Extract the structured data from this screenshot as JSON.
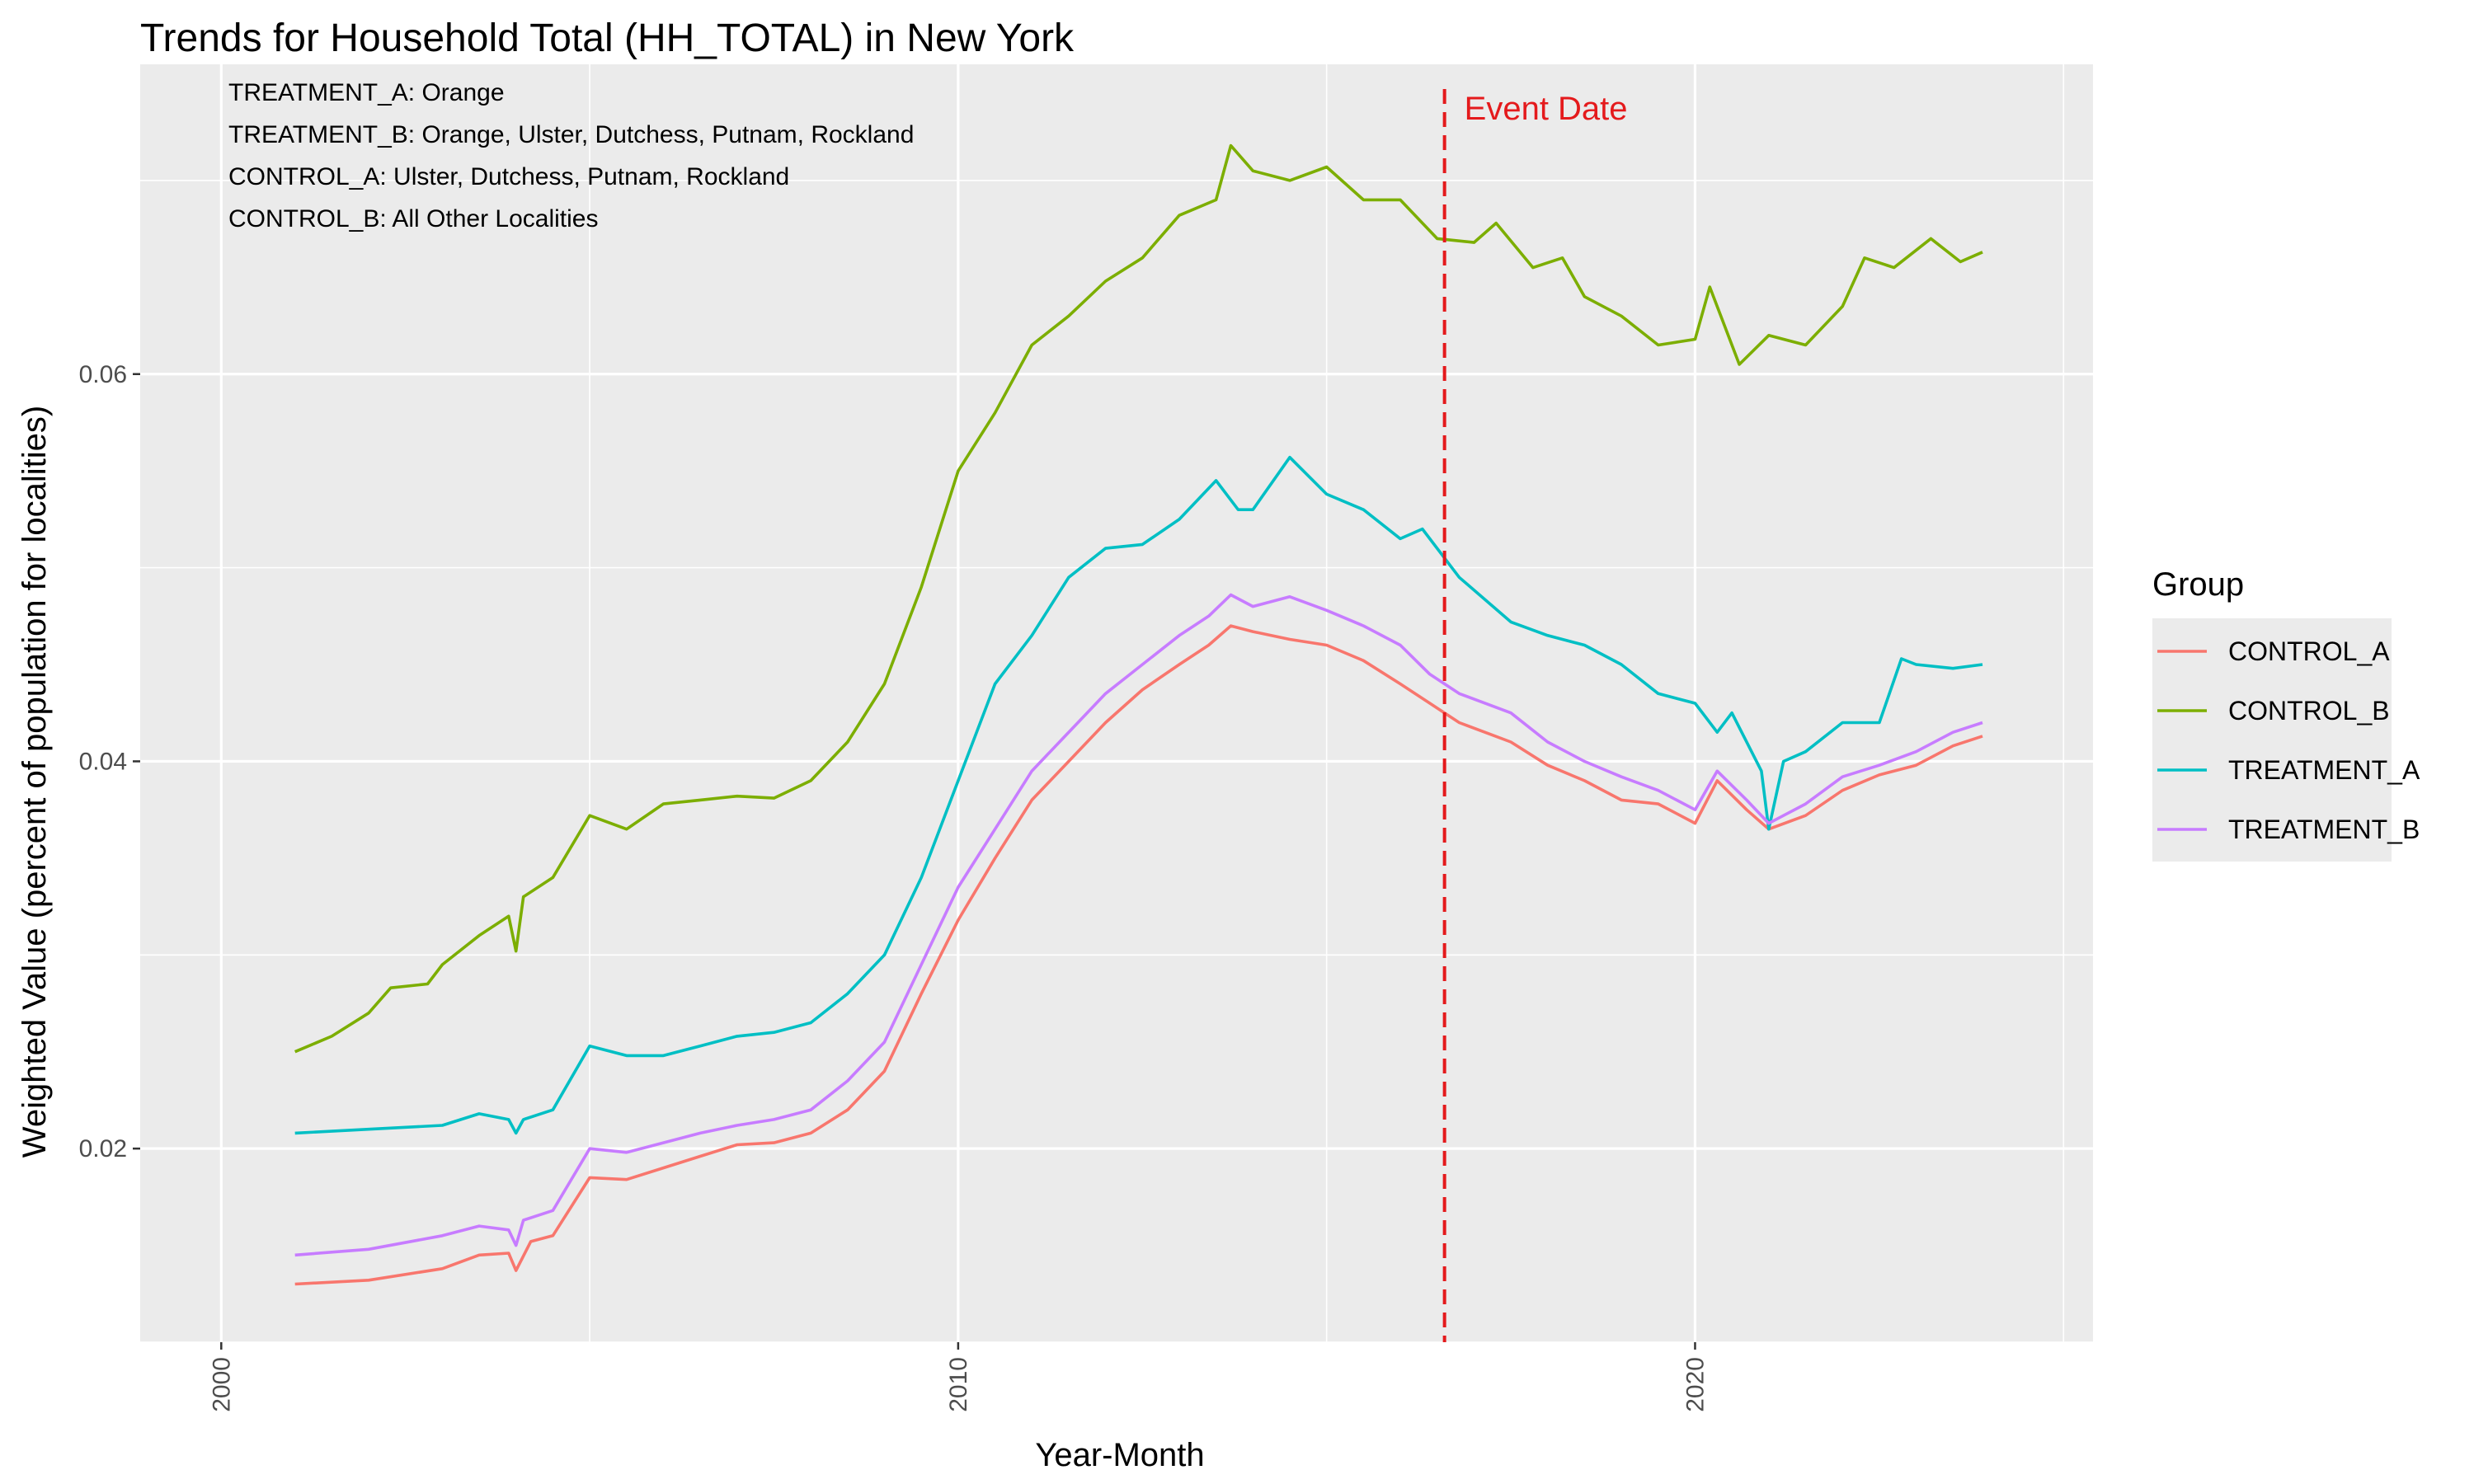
{
  "chart_data": {
    "type": "line",
    "title": "Trends for Household Total (HH_TOTAL) in New York",
    "xlabel": "Year-Month",
    "ylabel": "Weighted Value (percent of population for localities)",
    "xlim": [
      1998.9,
      2025.4
    ],
    "ylim": [
      0.01,
      0.076
    ],
    "x_ticks": [
      2000,
      2010,
      2020
    ],
    "y_ticks": [
      0.02,
      0.04,
      0.06
    ],
    "y_tick_labels": [
      "0.02",
      "0.04",
      "0.06"
    ],
    "grid": true,
    "legend_position": "right",
    "legend_title": "Group",
    "annotations": [
      "TREATMENT_A: Orange",
      "TREATMENT_B: Orange, Ulster, Dutchess, Putnam, Rockland",
      "CONTROL_A: Ulster, Dutchess, Putnam, Rockland",
      "CONTROL_B: All Other Localities"
    ],
    "event": {
      "x": 2016.6,
      "label": "Event Date",
      "color": "#e41a1c"
    },
    "series": [
      {
        "name": "CONTROL_A",
        "color": "#F8766D",
        "points": [
          [
            2001.0,
            0.013
          ],
          [
            2002.0,
            0.0132
          ],
          [
            2003.0,
            0.0138
          ],
          [
            2003.5,
            0.0145
          ],
          [
            2003.9,
            0.0146
          ],
          [
            2004.0,
            0.0137
          ],
          [
            2004.2,
            0.0152
          ],
          [
            2004.5,
            0.0155
          ],
          [
            2005.0,
            0.0185
          ],
          [
            2005.5,
            0.0184
          ],
          [
            2006.0,
            0.019
          ],
          [
            2006.5,
            0.0196
          ],
          [
            2007.0,
            0.0202
          ],
          [
            2007.5,
            0.0203
          ],
          [
            2008.0,
            0.0208
          ],
          [
            2008.5,
            0.022
          ],
          [
            2009.0,
            0.024
          ],
          [
            2009.5,
            0.028
          ],
          [
            2010.0,
            0.0318
          ],
          [
            2010.5,
            0.035
          ],
          [
            2011.0,
            0.038
          ],
          [
            2011.5,
            0.04
          ],
          [
            2012.0,
            0.042
          ],
          [
            2012.5,
            0.0437
          ],
          [
            2013.0,
            0.045
          ],
          [
            2013.4,
            0.046
          ],
          [
            2013.7,
            0.047
          ],
          [
            2014.0,
            0.0467
          ],
          [
            2014.5,
            0.0463
          ],
          [
            2015.0,
            0.046
          ],
          [
            2015.5,
            0.0452
          ],
          [
            2016.0,
            0.044
          ],
          [
            2016.4,
            0.043
          ],
          [
            2016.8,
            0.042
          ],
          [
            2017.5,
            0.041
          ],
          [
            2018.0,
            0.0398
          ],
          [
            2018.5,
            0.039
          ],
          [
            2019.0,
            0.038
          ],
          [
            2019.5,
            0.0378
          ],
          [
            2020.0,
            0.0368
          ],
          [
            2020.3,
            0.039
          ],
          [
            2020.7,
            0.0375
          ],
          [
            2021.0,
            0.0365
          ],
          [
            2021.5,
            0.0372
          ],
          [
            2022.0,
            0.0385
          ],
          [
            2022.5,
            0.0393
          ],
          [
            2023.0,
            0.0398
          ],
          [
            2023.5,
            0.0408
          ],
          [
            2023.9,
            0.0413
          ]
        ]
      },
      {
        "name": "CONTROL_B",
        "color": "#7CAE00",
        "points": [
          [
            2001.0,
            0.025
          ],
          [
            2001.5,
            0.0258
          ],
          [
            2002.0,
            0.027
          ],
          [
            2002.3,
            0.0283
          ],
          [
            2002.8,
            0.0285
          ],
          [
            2003.0,
            0.0295
          ],
          [
            2003.5,
            0.031
          ],
          [
            2003.9,
            0.032
          ],
          [
            2004.0,
            0.0302
          ],
          [
            2004.1,
            0.033
          ],
          [
            2004.5,
            0.034
          ],
          [
            2005.0,
            0.0372
          ],
          [
            2005.5,
            0.0365
          ],
          [
            2006.0,
            0.0378
          ],
          [
            2006.5,
            0.038
          ],
          [
            2007.0,
            0.0382
          ],
          [
            2007.5,
            0.0381
          ],
          [
            2008.0,
            0.039
          ],
          [
            2008.5,
            0.041
          ],
          [
            2009.0,
            0.044
          ],
          [
            2009.5,
            0.049
          ],
          [
            2010.0,
            0.055
          ],
          [
            2010.5,
            0.058
          ],
          [
            2011.0,
            0.0615
          ],
          [
            2011.5,
            0.063
          ],
          [
            2012.0,
            0.0648
          ],
          [
            2012.5,
            0.066
          ],
          [
            2013.0,
            0.0682
          ],
          [
            2013.5,
            0.069
          ],
          [
            2013.7,
            0.0718
          ],
          [
            2014.0,
            0.0705
          ],
          [
            2014.5,
            0.07
          ],
          [
            2015.0,
            0.0707
          ],
          [
            2015.5,
            0.069
          ],
          [
            2016.0,
            0.069
          ],
          [
            2016.5,
            0.067
          ],
          [
            2017.0,
            0.0668
          ],
          [
            2017.3,
            0.0678
          ],
          [
            2017.8,
            0.0655
          ],
          [
            2018.2,
            0.066
          ],
          [
            2018.5,
            0.064
          ],
          [
            2019.0,
            0.063
          ],
          [
            2019.5,
            0.0615
          ],
          [
            2020.0,
            0.0618
          ],
          [
            2020.2,
            0.0645
          ],
          [
            2020.6,
            0.0605
          ],
          [
            2021.0,
            0.062
          ],
          [
            2021.5,
            0.0615
          ],
          [
            2022.0,
            0.0635
          ],
          [
            2022.3,
            0.066
          ],
          [
            2022.7,
            0.0655
          ],
          [
            2023.2,
            0.067
          ],
          [
            2023.6,
            0.0658
          ],
          [
            2023.9,
            0.0663
          ]
        ]
      },
      {
        "name": "TREATMENT_A",
        "color": "#00BFC4",
        "points": [
          [
            2001.0,
            0.0208
          ],
          [
            2002.0,
            0.021
          ],
          [
            2003.0,
            0.0212
          ],
          [
            2003.5,
            0.0218
          ],
          [
            2003.9,
            0.0215
          ],
          [
            2004.0,
            0.0208
          ],
          [
            2004.1,
            0.0215
          ],
          [
            2004.5,
            0.022
          ],
          [
            2005.0,
            0.0253
          ],
          [
            2005.5,
            0.0248
          ],
          [
            2006.0,
            0.0248
          ],
          [
            2006.5,
            0.0253
          ],
          [
            2007.0,
            0.0258
          ],
          [
            2007.5,
            0.026
          ],
          [
            2008.0,
            0.0265
          ],
          [
            2008.5,
            0.028
          ],
          [
            2009.0,
            0.03
          ],
          [
            2009.5,
            0.034
          ],
          [
            2010.0,
            0.039
          ],
          [
            2010.5,
            0.044
          ],
          [
            2011.0,
            0.0465
          ],
          [
            2011.5,
            0.0495
          ],
          [
            2012.0,
            0.051
          ],
          [
            2012.5,
            0.0512
          ],
          [
            2013.0,
            0.0525
          ],
          [
            2013.5,
            0.0545
          ],
          [
            2013.8,
            0.053
          ],
          [
            2014.0,
            0.053
          ],
          [
            2014.5,
            0.0557
          ],
          [
            2015.0,
            0.0538
          ],
          [
            2015.5,
            0.053
          ],
          [
            2016.0,
            0.0515
          ],
          [
            2016.3,
            0.052
          ],
          [
            2016.8,
            0.0495
          ],
          [
            2017.5,
            0.0472
          ],
          [
            2018.0,
            0.0465
          ],
          [
            2018.5,
            0.046
          ],
          [
            2019.0,
            0.045
          ],
          [
            2019.5,
            0.0435
          ],
          [
            2020.0,
            0.043
          ],
          [
            2020.3,
            0.0415
          ],
          [
            2020.5,
            0.0425
          ],
          [
            2020.9,
            0.0395
          ],
          [
            2021.0,
            0.0365
          ],
          [
            2021.2,
            0.04
          ],
          [
            2021.5,
            0.0405
          ],
          [
            2022.0,
            0.042
          ],
          [
            2022.5,
            0.042
          ],
          [
            2022.8,
            0.0453
          ],
          [
            2023.0,
            0.045
          ],
          [
            2023.5,
            0.0448
          ],
          [
            2023.9,
            0.045
          ]
        ]
      },
      {
        "name": "TREATMENT_B",
        "color": "#C77CFF",
        "points": [
          [
            2001.0,
            0.0145
          ],
          [
            2002.0,
            0.0148
          ],
          [
            2003.0,
            0.0155
          ],
          [
            2003.5,
            0.016
          ],
          [
            2003.9,
            0.0158
          ],
          [
            2004.0,
            0.015
          ],
          [
            2004.1,
            0.0163
          ],
          [
            2004.5,
            0.0168
          ],
          [
            2005.0,
            0.02
          ],
          [
            2005.5,
            0.0198
          ],
          [
            2006.0,
            0.0203
          ],
          [
            2006.5,
            0.0208
          ],
          [
            2007.0,
            0.0212
          ],
          [
            2007.5,
            0.0215
          ],
          [
            2008.0,
            0.022
          ],
          [
            2008.5,
            0.0235
          ],
          [
            2009.0,
            0.0255
          ],
          [
            2009.5,
            0.0295
          ],
          [
            2010.0,
            0.0335
          ],
          [
            2010.5,
            0.0365
          ],
          [
            2011.0,
            0.0395
          ],
          [
            2011.5,
            0.0415
          ],
          [
            2012.0,
            0.0435
          ],
          [
            2012.5,
            0.045
          ],
          [
            2013.0,
            0.0465
          ],
          [
            2013.4,
            0.0475
          ],
          [
            2013.7,
            0.0486
          ],
          [
            2014.0,
            0.048
          ],
          [
            2014.5,
            0.0485
          ],
          [
            2015.0,
            0.0478
          ],
          [
            2015.5,
            0.047
          ],
          [
            2016.0,
            0.046
          ],
          [
            2016.4,
            0.0445
          ],
          [
            2016.8,
            0.0435
          ],
          [
            2017.5,
            0.0425
          ],
          [
            2018.0,
            0.041
          ],
          [
            2018.5,
            0.04
          ],
          [
            2019.0,
            0.0392
          ],
          [
            2019.5,
            0.0385
          ],
          [
            2020.0,
            0.0375
          ],
          [
            2020.3,
            0.0395
          ],
          [
            2020.7,
            0.038
          ],
          [
            2021.0,
            0.0368
          ],
          [
            2021.5,
            0.0378
          ],
          [
            2022.0,
            0.0392
          ],
          [
            2022.5,
            0.0398
          ],
          [
            2023.0,
            0.0405
          ],
          [
            2023.5,
            0.0415
          ],
          [
            2023.9,
            0.042
          ]
        ]
      }
    ]
  }
}
